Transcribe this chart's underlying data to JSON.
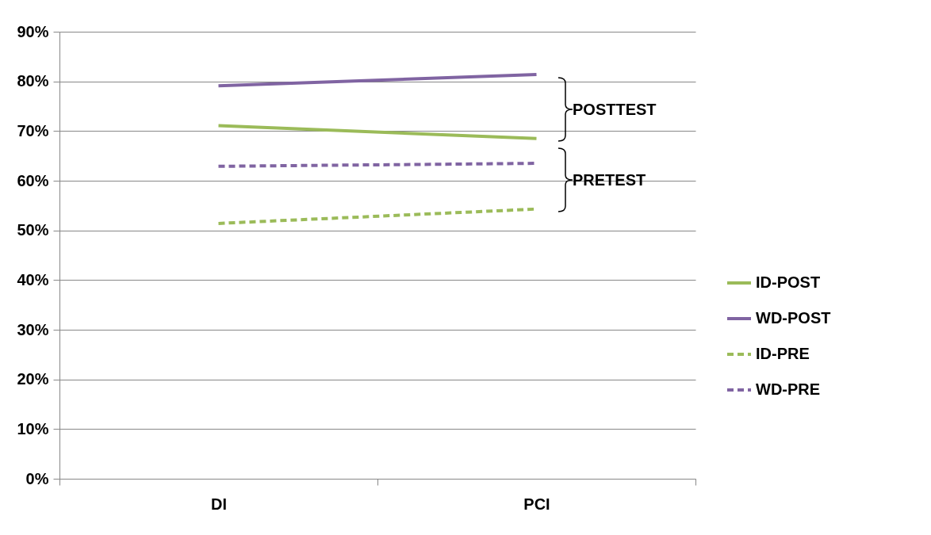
{
  "chart_data": {
    "type": "line",
    "categories": [
      "DI",
      "PCI"
    ],
    "series": [
      {
        "name": "ID-POST",
        "color": "#9bbb59",
        "line_style": "solid",
        "values": [
          71.1,
          68.5
        ]
      },
      {
        "name": "WD-POST",
        "color": "#8064a2",
        "line_style": "solid",
        "values": [
          79.1,
          81.4
        ]
      },
      {
        "name": "ID-PRE",
        "color": "#9bbb59",
        "line_style": "dashed",
        "values": [
          51.4,
          54.3
        ]
      },
      {
        "name": "WD-PRE",
        "color": "#8064a2",
        "line_style": "dashed",
        "values": [
          62.9,
          63.5
        ]
      }
    ],
    "ylim": [
      0,
      90
    ],
    "yticks": [
      {
        "value": 0,
        "label": "0%"
      },
      {
        "value": 10,
        "label": "10%"
      },
      {
        "value": 20,
        "label": "20%"
      },
      {
        "value": 30,
        "label": "30%"
      },
      {
        "value": 40,
        "label": "40%"
      },
      {
        "value": 50,
        "label": "50%"
      },
      {
        "value": 60,
        "label": "60%"
      },
      {
        "value": 70,
        "label": "70%"
      },
      {
        "value": 80,
        "label": "80%"
      },
      {
        "value": 90,
        "label": "90%"
      }
    ],
    "grid": "y",
    "legend": "right",
    "marker": "none",
    "annotations": [
      "POSTTEST",
      "PRETEST"
    ]
  }
}
